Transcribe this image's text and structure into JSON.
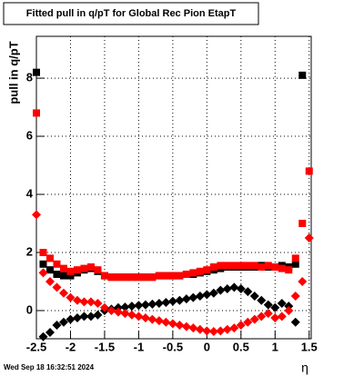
{
  "chart_data": {
    "type": "scatter",
    "title": "Fitted pull in q/pT for Global Rec Pion EtapT",
    "y_label": "pull in q/pT",
    "x_label": "η",
    "timestamp": "Wed Sep 18 16:32:51 2024",
    "x": [
      -2.5,
      -2.4,
      -2.3,
      -2.2,
      -2.1,
      -2.0,
      -1.9,
      -1.8,
      -1.7,
      -1.6,
      -1.5,
      -1.4,
      -1.3,
      -1.2,
      -1.1,
      -1.0,
      -0.9,
      -0.8,
      -0.7,
      -0.6,
      -0.5,
      -0.4,
      -0.3,
      -0.2,
      -0.1,
      0.0,
      0.1,
      0.2,
      0.3,
      0.4,
      0.5,
      0.6,
      0.7,
      0.8,
      0.9,
      1.0,
      1.1,
      1.2,
      1.3,
      1.4,
      1.5
    ],
    "series": [
      {
        "color": "#000000",
        "marker": "square",
        "values": [
          8.2,
          1.6,
          1.4,
          1.25,
          1.2,
          1.2,
          1.3,
          1.4,
          1.45,
          1.35,
          1.2,
          1.15,
          1.15,
          1.15,
          1.15,
          1.15,
          1.15,
          1.15,
          1.2,
          1.2,
          1.2,
          1.2,
          1.25,
          1.25,
          1.3,
          1.35,
          1.4,
          1.45,
          1.5,
          1.5,
          1.5,
          1.5,
          1.5,
          1.55,
          1.5,
          1.5,
          1.55,
          1.5,
          1.6,
          8.1,
          null
        ]
      },
      {
        "color": "#ff0000",
        "marker": "square",
        "values": [
          6.8,
          2.0,
          1.8,
          1.6,
          1.45,
          1.35,
          1.4,
          1.45,
          1.5,
          1.4,
          1.2,
          1.15,
          1.15,
          1.15,
          1.15,
          1.15,
          1.15,
          1.15,
          1.2,
          1.2,
          1.2,
          1.2,
          1.25,
          1.3,
          1.35,
          1.4,
          1.5,
          1.55,
          1.55,
          1.55,
          1.55,
          1.55,
          1.55,
          1.5,
          1.55,
          1.5,
          1.45,
          1.4,
          1.8,
          3.0,
          4.8
        ]
      },
      {
        "color": "#000000",
        "marker": "diamond",
        "values": [
          null,
          -0.9,
          -0.75,
          -0.5,
          -0.4,
          -0.3,
          -0.25,
          -0.2,
          -0.2,
          -0.15,
          0.0,
          0.05,
          0.1,
          0.12,
          0.15,
          0.18,
          0.2,
          0.22,
          0.25,
          0.28,
          0.32,
          0.35,
          0.4,
          0.45,
          0.5,
          0.55,
          0.6,
          0.7,
          0.75,
          0.8,
          0.75,
          0.65,
          0.5,
          0.35,
          0.2,
          0.1,
          0.25,
          0.15,
          -0.4,
          null,
          null
        ]
      },
      {
        "color": "#ff0000",
        "marker": "diamond",
        "values": [
          3.3,
          1.3,
          1.0,
          0.8,
          0.6,
          0.45,
          0.35,
          0.3,
          0.3,
          0.25,
          0.1,
          0.0,
          -0.05,
          -0.1,
          -0.15,
          -0.2,
          -0.25,
          -0.3,
          -0.35,
          -0.4,
          -0.45,
          -0.5,
          -0.55,
          -0.6,
          -0.65,
          -0.7,
          -0.72,
          -0.7,
          -0.65,
          -0.6,
          -0.5,
          -0.4,
          -0.3,
          -0.2,
          -0.1,
          -0.25,
          -0.2,
          0.0,
          0.5,
          1.0,
          2.5
        ]
      }
    ],
    "xlim": [
      -2.5,
      1.53
    ],
    "ylim": [
      -0.97,
      9.44
    ],
    "xticks": [
      -2.5,
      -2,
      -1.5,
      -1,
      -0.5,
      0,
      0.5,
      1,
      1.5
    ],
    "yticks": [
      0,
      2,
      4,
      6,
      8
    ],
    "grid": true
  }
}
